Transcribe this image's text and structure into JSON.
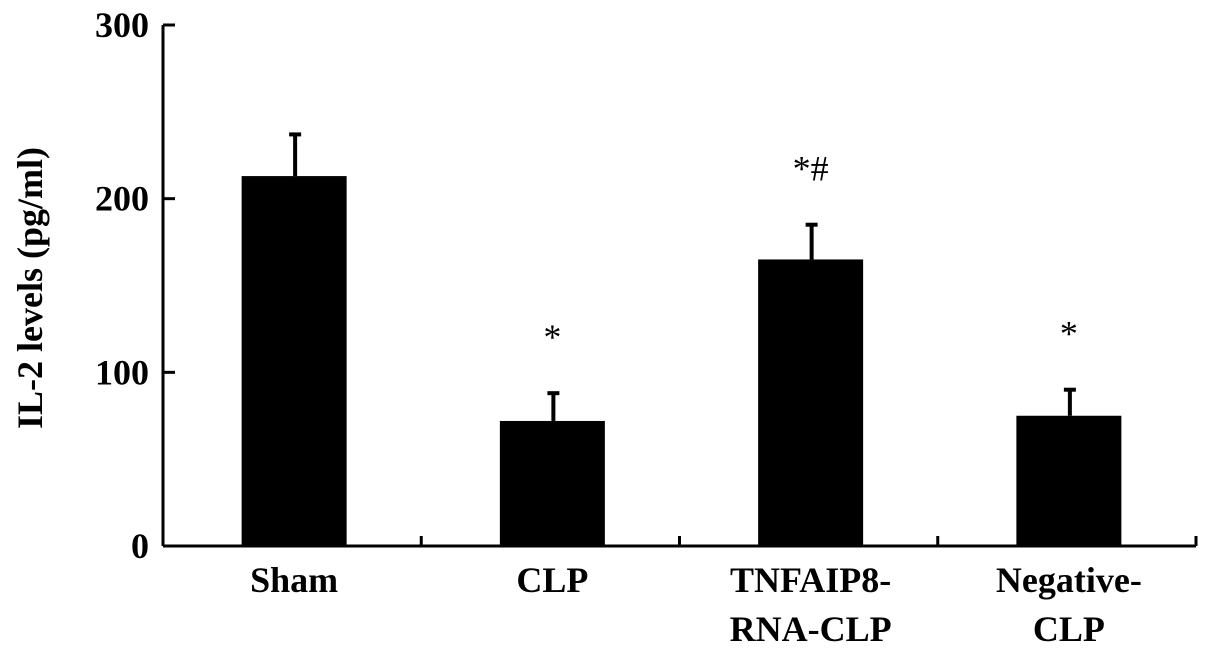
{
  "chart_data": {
    "type": "bar",
    "categories": [
      [
        "Sham"
      ],
      [
        "CLP"
      ],
      [
        "TNFAIP8-",
        "RNA-CLP"
      ],
      [
        "Negative-",
        "CLP"
      ]
    ],
    "values": [
      213,
      72,
      165,
      75
    ],
    "errors": [
      24,
      16,
      20,
      15
    ],
    "annotations": [
      "",
      "*",
      "*#",
      "*"
    ],
    "ylabel": "IL-2  levels (pg/ml)",
    "xlabel": "",
    "ylim": [
      0,
      300
    ],
    "yticks": [
      0,
      100,
      200,
      300
    ],
    "grid": false,
    "bar_color": "#000000"
  }
}
